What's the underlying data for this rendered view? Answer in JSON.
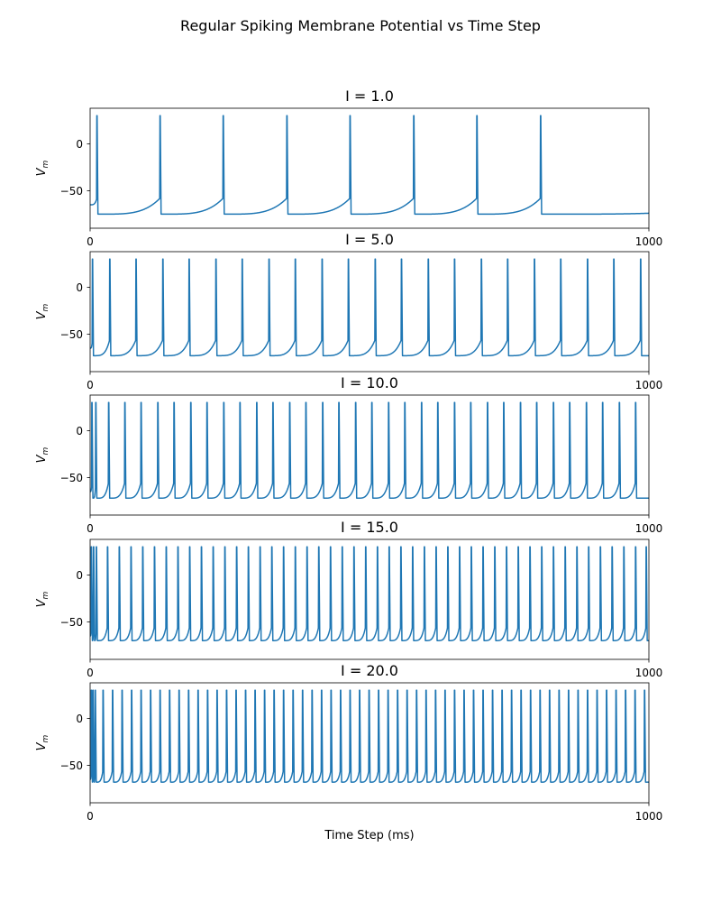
{
  "figure": {
    "title": "Regular Spiking Membrane Potential vs Time Step",
    "xlabel": "Time Step (ms)"
  },
  "chart_data": [
    {
      "type": "line",
      "title": "I = 1.0",
      "ylabel_base": "V",
      "ylabel_sub": "m",
      "xlim": [
        0,
        1000
      ],
      "ylim": [
        -90,
        38
      ],
      "xticks": [
        0,
        1000
      ],
      "yticks": [
        0,
        -50
      ],
      "color": "#1f77b4",
      "model": {
        "v_start": -65,
        "v_reset": -75,
        "v_threshold": -58,
        "v_peak": 30
      },
      "spike_times": [
        12,
        125,
        238,
        352,
        465,
        579,
        692,
        806
      ]
    },
    {
      "type": "line",
      "title": "I = 5.0",
      "ylabel_base": "V",
      "ylabel_sub": "m",
      "xlim": [
        0,
        1000
      ],
      "ylim": [
        -90,
        38
      ],
      "xticks": [
        0,
        1000
      ],
      "yticks": [
        0,
        -50
      ],
      "color": "#1f77b4",
      "model": {
        "v_start": -65,
        "v_reset": -73,
        "v_threshold": -56,
        "v_peak": 30
      },
      "spike_times": [
        4,
        35,
        82,
        130,
        177,
        225,
        272,
        320,
        367,
        415,
        462,
        510,
        557,
        605,
        652,
        700,
        747,
        795,
        842,
        890,
        937,
        985
      ]
    },
    {
      "type": "line",
      "title": "I = 10.0",
      "ylabel_base": "V",
      "ylabel_sub": "m",
      "xlim": [
        0,
        1000
      ],
      "ylim": [
        -90,
        38
      ],
      "xticks": [
        0,
        1000
      ],
      "yticks": [
        0,
        -50
      ],
      "color": "#1f77b4",
      "model": {
        "v_start": -65,
        "v_reset": -72,
        "v_threshold": -55,
        "v_peak": 30
      },
      "spike_times": [
        3,
        10,
        33,
        62,
        91,
        121,
        150,
        180,
        209,
        239,
        268,
        298,
        327,
        357,
        386,
        416,
        445,
        475,
        504,
        534,
        563,
        593,
        622,
        652,
        681,
        711,
        740,
        770,
        799,
        829,
        858,
        888,
        917,
        947,
        976
      ]
    },
    {
      "type": "line",
      "title": "I = 15.0",
      "ylabel_base": "V",
      "ylabel_sub": "m",
      "xlim": [
        0,
        1000
      ],
      "ylim": [
        -90,
        38
      ],
      "xticks": [
        0,
        1000
      ],
      "yticks": [
        0,
        -50
      ],
      "color": "#1f77b4",
      "model": {
        "v_start": -65,
        "v_reset": -70,
        "v_threshold": -55,
        "v_peak": 30
      },
      "spike_times": [
        2,
        6,
        11,
        31,
        52,
        73,
        94,
        115,
        136,
        157,
        178,
        199,
        220,
        241,
        262,
        283,
        304,
        325,
        346,
        367,
        388,
        409,
        430,
        451,
        472,
        493,
        514,
        535,
        556,
        577,
        598,
        619,
        640,
        661,
        682,
        703,
        724,
        745,
        766,
        787,
        808,
        829,
        850,
        871,
        892,
        913,
        934,
        955,
        976,
        995
      ]
    },
    {
      "type": "line",
      "title": "I = 20.0",
      "ylabel_base": "V",
      "ylabel_sub": "m",
      "xlim": [
        0,
        1000
      ],
      "ylim": [
        -90,
        38
      ],
      "xticks": [
        0,
        1000
      ],
      "yticks": [
        0,
        -50
      ],
      "color": "#1f77b4",
      "model": {
        "v_start": -65,
        "v_reset": -68,
        "v_threshold": -55,
        "v_peak": 30
      },
      "spike_times": [
        2,
        5,
        9,
        23,
        40,
        57,
        74,
        91,
        108,
        125,
        142,
        159,
        176,
        193,
        210,
        227,
        244,
        261,
        278,
        295,
        312,
        329,
        346,
        363,
        380,
        397,
        414,
        431,
        448,
        465,
        482,
        499,
        516,
        533,
        550,
        567,
        584,
        601,
        618,
        635,
        652,
        669,
        686,
        703,
        720,
        737,
        754,
        771,
        788,
        805,
        822,
        839,
        856,
        873,
        890,
        907,
        924,
        941,
        958,
        975,
        992
      ]
    }
  ]
}
